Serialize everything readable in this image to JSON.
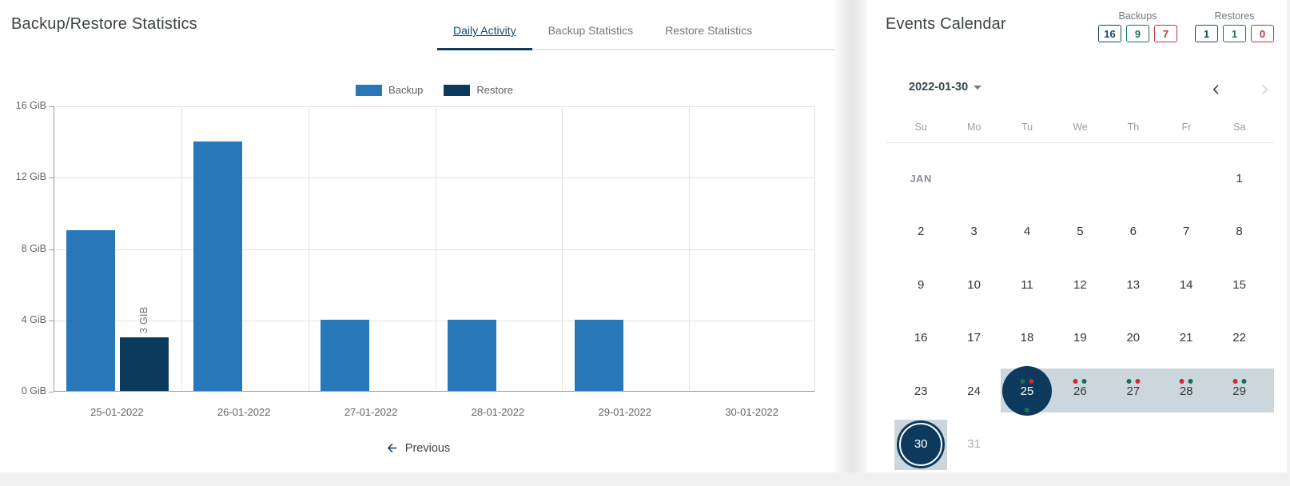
{
  "left_panel": {
    "title": "Backup/Restore Statistics",
    "tabs": [
      {
        "label": "Daily Activity",
        "active": true
      },
      {
        "label": "Backup Statistics",
        "active": false
      },
      {
        "label": "Restore Statistics",
        "active": false
      }
    ],
    "previous_label": "Previous"
  },
  "chart_data": {
    "type": "bar",
    "title": "Daily Activity",
    "categories": [
      "25-01-2022",
      "26-01-2022",
      "27-01-2022",
      "28-01-2022",
      "29-01-2022",
      "30-01-2022"
    ],
    "series": [
      {
        "name": "Backup",
        "color": "#2878b9",
        "values": [
          9,
          14,
          4,
          4,
          4,
          0
        ]
      },
      {
        "name": "Restore",
        "color": "#0c3a5c",
        "values": [
          3,
          0,
          0,
          0,
          0,
          0
        ]
      }
    ],
    "unit": "GiB",
    "ylim": [
      0,
      16
    ],
    "ytick_labels": [
      "0 GiB",
      "4 GiB",
      "8 GiB",
      "12 GiB",
      "16 GiB"
    ],
    "bar_labels": [
      {
        "series": 1,
        "index": 0,
        "text": "3 GIB"
      }
    ],
    "legend_position": "top",
    "grid": true
  },
  "right_panel": {
    "title": "Events Calendar",
    "counters": {
      "backups": {
        "label": "Backups",
        "values": [
          {
            "value": "16",
            "color": "navy"
          },
          {
            "value": "9",
            "color": "green"
          },
          {
            "value": "7",
            "color": "red"
          }
        ]
      },
      "restores": {
        "label": "Restores",
        "values": [
          {
            "value": "1",
            "color": "navy"
          },
          {
            "value": "1",
            "color": "green"
          },
          {
            "value": "0",
            "color": "red"
          }
        ]
      }
    },
    "calendar": {
      "selected_date": "2022-01-30",
      "weekdays": [
        "Su",
        "Mo",
        "Tu",
        "We",
        "Th",
        "Fr",
        "Sa"
      ],
      "cells": [
        {
          "row": 0,
          "col": 0,
          "label": "JAN",
          "type": "month"
        },
        {
          "row": 0,
          "col": 6,
          "label": "1",
          "type": "day"
        },
        {
          "row": 1,
          "col": 0,
          "label": "2",
          "type": "day"
        },
        {
          "row": 1,
          "col": 1,
          "label": "3",
          "type": "day"
        },
        {
          "row": 1,
          "col": 2,
          "label": "4",
          "type": "day"
        },
        {
          "row": 1,
          "col": 3,
          "label": "5",
          "type": "day"
        },
        {
          "row": 1,
          "col": 4,
          "label": "6",
          "type": "day"
        },
        {
          "row": 1,
          "col": 5,
          "label": "7",
          "type": "day"
        },
        {
          "row": 1,
          "col": 6,
          "label": "8",
          "type": "day"
        },
        {
          "row": 2,
          "col": 0,
          "label": "9",
          "type": "day"
        },
        {
          "row": 2,
          "col": 1,
          "label": "10",
          "type": "day"
        },
        {
          "row": 2,
          "col": 2,
          "label": "11",
          "type": "day"
        },
        {
          "row": 2,
          "col": 3,
          "label": "12",
          "type": "day"
        },
        {
          "row": 2,
          "col": 4,
          "label": "13",
          "type": "day"
        },
        {
          "row": 2,
          "col": 5,
          "label": "14",
          "type": "day"
        },
        {
          "row": 2,
          "col": 6,
          "label": "15",
          "type": "day"
        },
        {
          "row": 3,
          "col": 0,
          "label": "16",
          "type": "day"
        },
        {
          "row": 3,
          "col": 1,
          "label": "17",
          "type": "day"
        },
        {
          "row": 3,
          "col": 2,
          "label": "18",
          "type": "day"
        },
        {
          "row": 3,
          "col": 3,
          "label": "19",
          "type": "day"
        },
        {
          "row": 3,
          "col": 4,
          "label": "20",
          "type": "day"
        },
        {
          "row": 3,
          "col": 5,
          "label": "21",
          "type": "day"
        },
        {
          "row": 3,
          "col": 6,
          "label": "22",
          "type": "day"
        },
        {
          "row": 4,
          "col": 0,
          "label": "23",
          "type": "day"
        },
        {
          "row": 4,
          "col": 1,
          "label": "24",
          "type": "day"
        },
        {
          "row": 4,
          "col": 2,
          "label": "25",
          "type": "selected",
          "dots_top": [
            "green",
            "red"
          ],
          "dots_bottom": [
            "green"
          ]
        },
        {
          "row": 4,
          "col": 3,
          "label": "26",
          "type": "day",
          "dots_top": [
            "red",
            "green"
          ]
        },
        {
          "row": 4,
          "col": 4,
          "label": "27",
          "type": "day",
          "dots_top": [
            "green",
            "red"
          ]
        },
        {
          "row": 4,
          "col": 5,
          "label": "28",
          "type": "day",
          "dots_top": [
            "red",
            "green"
          ]
        },
        {
          "row": 4,
          "col": 6,
          "label": "29",
          "type": "day",
          "dots_top": [
            "red",
            "green"
          ]
        },
        {
          "row": 5,
          "col": 0,
          "label": "30",
          "type": "today"
        },
        {
          "row": 5,
          "col": 1,
          "label": "31",
          "type": "muted"
        }
      ],
      "bands": [
        {
          "row": 4,
          "from_col": 2,
          "to_col": 6,
          "extend_right": 10
        },
        {
          "row": 5,
          "from_col": 0,
          "to_col": 0,
          "extend_right": 0
        }
      ]
    }
  },
  "colors": {
    "navy": "#17466b",
    "green": "#15745a",
    "red": "#c9303c",
    "dot_green": "#1b6e52",
    "dot_red": "#d02b2b",
    "circle_navy": "#0d3a5c",
    "band": "#ccd7dd",
    "accent": "#0d3c5f"
  }
}
